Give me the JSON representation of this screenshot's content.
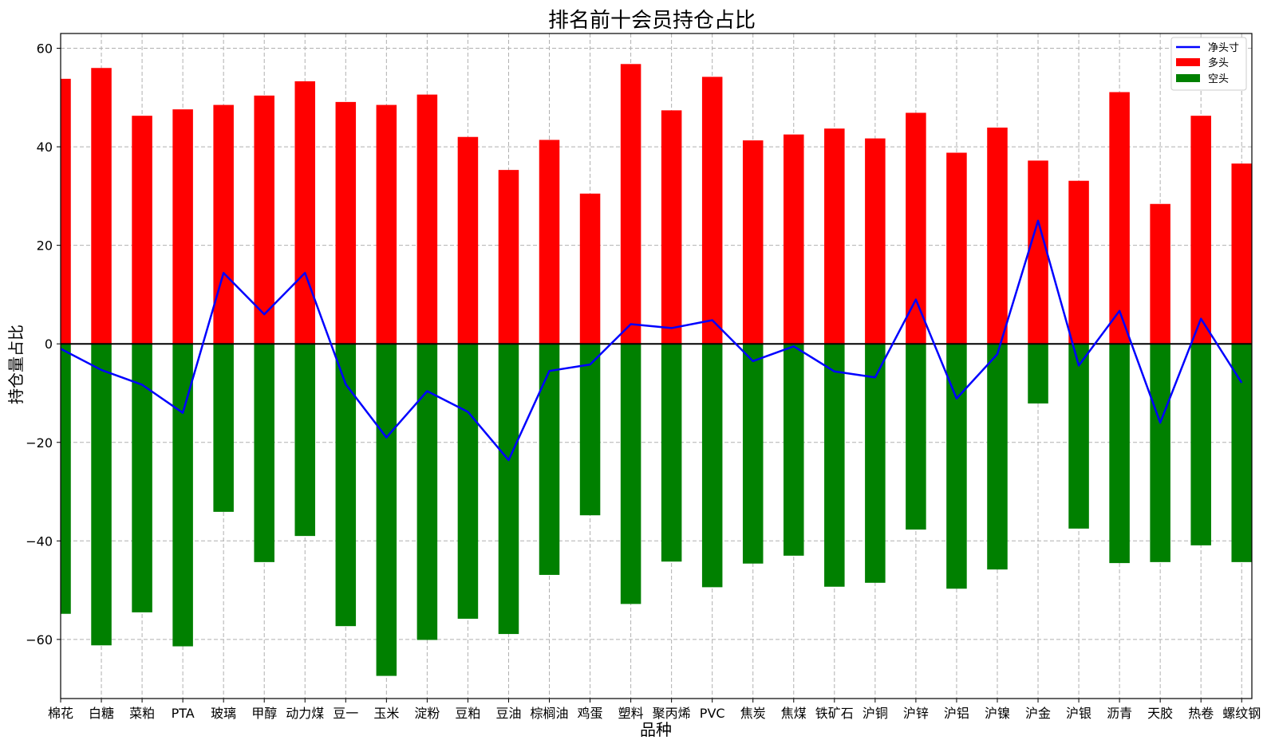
{
  "chart_data": {
    "type": "bar",
    "title": "排名前十会员持仓占比",
    "xlabel": "品种",
    "ylabel": "持仓量占比",
    "ylim": [
      -72,
      63
    ],
    "yticks": [
      -60,
      -40,
      -20,
      0,
      20,
      40,
      60
    ],
    "grid": true,
    "legend_position": "top-right",
    "categories": [
      "棉花",
      "白糖",
      "菜粕",
      "PTA",
      "玻璃",
      "甲醇",
      "动力煤",
      "豆一",
      "玉米",
      "淀粉",
      "豆粕",
      "豆油",
      "棕榈油",
      "鸡蛋",
      "塑料",
      "聚丙烯",
      "PVC",
      "焦炭",
      "焦煤",
      "铁矿石",
      "沪铜",
      "沪锌",
      "沪铝",
      "沪镍",
      "沪金",
      "沪银",
      "沥青",
      "天胶",
      "热卷",
      "螺纹钢"
    ],
    "series": [
      {
        "name": "净头寸",
        "kind": "line",
        "color": "#0000ff",
        "values": [
          -1,
          -5.3,
          -8.3,
          -14,
          14.4,
          6,
          14.4,
          -8.2,
          -19,
          -9.6,
          -13.8,
          -23.6,
          -5.5,
          -4.2,
          4,
          3.2,
          4.8,
          -3.5,
          -0.5,
          -5.6,
          -6.8,
          9,
          -11.1,
          -2.1,
          25,
          -4.4,
          6.7,
          -16,
          5.1,
          -7.9
        ]
      },
      {
        "name": "多头",
        "kind": "bar",
        "color": "#ff0000",
        "values": [
          53.8,
          56,
          46.3,
          47.6,
          48.5,
          50.4,
          53.3,
          49.1,
          48.5,
          50.6,
          42,
          35.3,
          41.4,
          30.5,
          56.8,
          47.4,
          54.2,
          41.3,
          42.5,
          43.7,
          41.7,
          46.9,
          38.8,
          43.9,
          37.2,
          33.1,
          51.1,
          28.4,
          46.3,
          36.6
        ]
      },
      {
        "name": "空头",
        "kind": "bar",
        "color": "#008000",
        "values": [
          -54.8,
          -61.2,
          -54.5,
          -61.4,
          -34.1,
          -44.3,
          -39,
          -57.3,
          -67.4,
          -60.1,
          -55.8,
          -58.9,
          -46.9,
          -34.8,
          -52.8,
          -44.2,
          -49.4,
          -44.6,
          -43,
          -49.3,
          -48.5,
          -37.7,
          -49.7,
          -45.8,
          -12.1,
          -37.5,
          -44.5,
          -44.3,
          -40.9,
          -44.3
        ]
      }
    ]
  }
}
